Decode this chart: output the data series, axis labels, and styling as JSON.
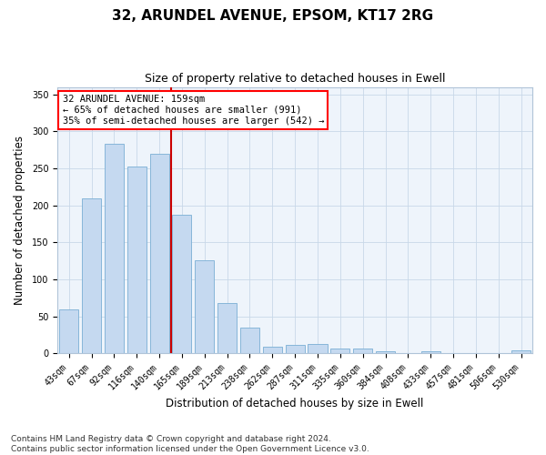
{
  "title1": "32, ARUNDEL AVENUE, EPSOM, KT17 2RG",
  "title2": "Size of property relative to detached houses in Ewell",
  "xlabel": "Distribution of detached houses by size in Ewell",
  "ylabel": "Number of detached properties",
  "annotation_line1": "32 ARUNDEL AVENUE: 159sqm",
  "annotation_line2": "← 65% of detached houses are smaller (991)",
  "annotation_line3": "35% of semi-detached houses are larger (542) →",
  "categories": [
    "43sqm",
    "67sqm",
    "92sqm",
    "116sqm",
    "140sqm",
    "165sqm",
    "189sqm",
    "213sqm",
    "238sqm",
    "262sqm",
    "287sqm",
    "311sqm",
    "335sqm",
    "360sqm",
    "384sqm",
    "408sqm",
    "433sqm",
    "457sqm",
    "481sqm",
    "506sqm",
    "530sqm"
  ],
  "values": [
    60,
    210,
    283,
    253,
    270,
    187,
    126,
    68,
    35,
    9,
    12,
    13,
    7,
    6,
    3,
    1,
    3,
    1,
    0,
    1,
    4
  ],
  "bar_color": "#c5d9f0",
  "bar_edge_color": "#7aafd4",
  "vline_color": "#cc0000",
  "background_color": "#ffffff",
  "plot_bg_color": "#eef4fb",
  "grid_color": "#c8d8e8",
  "footer1": "Contains HM Land Registry data © Crown copyright and database right 2024.",
  "footer2": "Contains public sector information licensed under the Open Government Licence v3.0.",
  "ylim": [
    0,
    360
  ],
  "yticks": [
    0,
    50,
    100,
    150,
    200,
    250,
    300,
    350
  ],
  "title1_fontsize": 11,
  "title2_fontsize": 9,
  "tick_fontsize": 7,
  "label_fontsize": 8.5,
  "footer_fontsize": 6.5
}
